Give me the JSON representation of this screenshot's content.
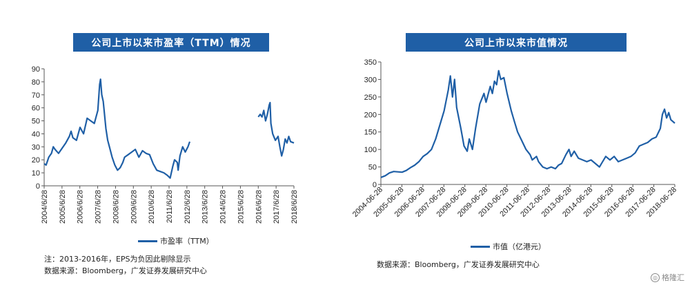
{
  "chart_data": [
    {
      "type": "line",
      "title": "公司上市以来市盈率（TTM）情况",
      "legend": "市盈率（TTM）",
      "ylim": [
        0,
        90
      ],
      "yticks": [
        0,
        10,
        20,
        30,
        40,
        50,
        60,
        70,
        80,
        90
      ],
      "xticks": [
        "2004/6/28",
        "2005/6/28",
        "2006/6/28",
        "2007/6/28",
        "2008/6/28",
        "2009/6/28",
        "2010/6/28",
        "2011/6/28",
        "2012/6/28",
        "2013/6/28",
        "2014/6/28",
        "2015/6/28",
        "2016/6/28",
        "2017/6/28",
        "2018/6/28"
      ],
      "xrange": [
        2004.49,
        2018.49
      ],
      "segments": [
        [
          [
            2004.49,
            17
          ],
          [
            2004.6,
            16
          ],
          [
            2004.75,
            22
          ],
          [
            2004.9,
            25
          ],
          [
            2005.0,
            30
          ],
          [
            2005.1,
            28
          ],
          [
            2005.3,
            25
          ],
          [
            2005.5,
            29
          ],
          [
            2005.7,
            33
          ],
          [
            2005.9,
            38
          ],
          [
            2006.0,
            42
          ],
          [
            2006.1,
            37
          ],
          [
            2006.3,
            35
          ],
          [
            2006.5,
            45
          ],
          [
            2006.7,
            40
          ],
          [
            2006.9,
            52
          ],
          [
            2007.1,
            50
          ],
          [
            2007.3,
            48
          ],
          [
            2007.5,
            58
          ],
          [
            2007.6,
            78
          ],
          [
            2007.65,
            82
          ],
          [
            2007.72,
            70
          ],
          [
            2007.8,
            65
          ],
          [
            2007.85,
            58
          ],
          [
            2007.95,
            44
          ],
          [
            2008.05,
            35
          ],
          [
            2008.15,
            30
          ],
          [
            2008.3,
            22
          ],
          [
            2008.45,
            16
          ],
          [
            2008.6,
            12
          ],
          [
            2008.75,
            14
          ],
          [
            2008.9,
            18
          ],
          [
            2009.0,
            22
          ],
          [
            2009.2,
            24
          ],
          [
            2009.4,
            26
          ],
          [
            2009.6,
            28
          ],
          [
            2009.8,
            22
          ],
          [
            2010.0,
            27
          ],
          [
            2010.2,
            25
          ],
          [
            2010.4,
            24
          ],
          [
            2010.6,
            17
          ],
          [
            2010.8,
            12
          ],
          [
            2011.0,
            11
          ],
          [
            2011.2,
            10
          ],
          [
            2011.4,
            8
          ],
          [
            2011.55,
            6
          ],
          [
            2011.7,
            15
          ],
          [
            2011.8,
            20
          ],
          [
            2011.95,
            18
          ],
          [
            2012.0,
            12
          ],
          [
            2012.1,
            23
          ],
          [
            2012.25,
            30
          ],
          [
            2012.4,
            26
          ],
          [
            2012.55,
            30
          ],
          [
            2012.65,
            34
          ]
        ],
        [
          [
            2016.49,
            53
          ],
          [
            2016.6,
            55
          ],
          [
            2016.7,
            53
          ],
          [
            2016.8,
            58
          ],
          [
            2016.9,
            50
          ],
          [
            2017.0,
            55
          ],
          [
            2017.1,
            62
          ],
          [
            2017.15,
            64
          ],
          [
            2017.2,
            48
          ],
          [
            2017.3,
            40
          ],
          [
            2017.45,
            35
          ],
          [
            2017.6,
            38
          ],
          [
            2017.7,
            30
          ],
          [
            2017.8,
            23
          ],
          [
            2017.9,
            28
          ],
          [
            2018.0,
            36
          ],
          [
            2018.1,
            33
          ],
          [
            2018.2,
            38
          ],
          [
            2018.3,
            34
          ],
          [
            2018.49,
            33
          ]
        ]
      ],
      "note1": "注：2013-2016年，EPS为负因此剔除显示",
      "note2": "数据来源：Bloomberg，广发证券发展研究中心"
    },
    {
      "type": "line",
      "title": "公司上市以来市值情况",
      "legend": "市值（亿港元）",
      "ylim": [
        0,
        350
      ],
      "yticks": [
        0,
        50,
        100,
        150,
        200,
        250,
        300,
        350
      ],
      "xticks": [
        "2004-06-28",
        "2005-06-28",
        "2006-06-28",
        "2007-06-28",
        "2008-06-28",
        "2009-06-28",
        "2010-06-28",
        "2011-06-28",
        "2012-06-28",
        "2013-06-28",
        "2014-06-28",
        "2015-06-28",
        "2016-06-28",
        "2017-06-28",
        "2018-06-28"
      ],
      "xrange": [
        2004.49,
        2018.49
      ],
      "segments": [
        [
          [
            2004.49,
            20
          ],
          [
            2004.7,
            25
          ],
          [
            2004.9,
            33
          ],
          [
            2005.1,
            37
          ],
          [
            2005.3,
            36
          ],
          [
            2005.5,
            35
          ],
          [
            2005.7,
            40
          ],
          [
            2005.9,
            48
          ],
          [
            2006.1,
            55
          ],
          [
            2006.3,
            65
          ],
          [
            2006.5,
            80
          ],
          [
            2006.7,
            88
          ],
          [
            2006.9,
            100
          ],
          [
            2007.1,
            130
          ],
          [
            2007.3,
            170
          ],
          [
            2007.5,
            210
          ],
          [
            2007.7,
            270
          ],
          [
            2007.8,
            310
          ],
          [
            2007.9,
            250
          ],
          [
            2008.0,
            300
          ],
          [
            2008.1,
            220
          ],
          [
            2008.3,
            160
          ],
          [
            2008.45,
            110
          ],
          [
            2008.6,
            95
          ],
          [
            2008.7,
            130
          ],
          [
            2008.85,
            100
          ],
          [
            2009.0,
            160
          ],
          [
            2009.2,
            230
          ],
          [
            2009.4,
            260
          ],
          [
            2009.5,
            235
          ],
          [
            2009.7,
            280
          ],
          [
            2009.8,
            260
          ],
          [
            2009.9,
            295
          ],
          [
            2010.0,
            285
          ],
          [
            2010.1,
            325
          ],
          [
            2010.2,
            300
          ],
          [
            2010.35,
            305
          ],
          [
            2010.5,
            260
          ],
          [
            2010.7,
            210
          ],
          [
            2010.85,
            180
          ],
          [
            2011.0,
            150
          ],
          [
            2011.2,
            125
          ],
          [
            2011.4,
            100
          ],
          [
            2011.6,
            85
          ],
          [
            2011.7,
            70
          ],
          [
            2011.9,
            80
          ],
          [
            2012.0,
            65
          ],
          [
            2012.2,
            50
          ],
          [
            2012.4,
            45
          ],
          [
            2012.6,
            50
          ],
          [
            2012.8,
            45
          ],
          [
            2012.95,
            55
          ],
          [
            2013.1,
            60
          ],
          [
            2013.3,
            85
          ],
          [
            2013.45,
            100
          ],
          [
            2013.55,
            80
          ],
          [
            2013.7,
            95
          ],
          [
            2013.9,
            75
          ],
          [
            2014.1,
            70
          ],
          [
            2014.3,
            65
          ],
          [
            2014.5,
            70
          ],
          [
            2014.7,
            60
          ],
          [
            2014.9,
            50
          ],
          [
            2015.0,
            60
          ],
          [
            2015.2,
            80
          ],
          [
            2015.4,
            70
          ],
          [
            2015.6,
            80
          ],
          [
            2015.8,
            65
          ],
          [
            2016.0,
            70
          ],
          [
            2016.2,
            75
          ],
          [
            2016.4,
            80
          ],
          [
            2016.6,
            90
          ],
          [
            2016.8,
            110
          ],
          [
            2017.0,
            115
          ],
          [
            2017.2,
            120
          ],
          [
            2017.4,
            130
          ],
          [
            2017.6,
            135
          ],
          [
            2017.8,
            160
          ],
          [
            2017.9,
            200
          ],
          [
            2018.0,
            215
          ],
          [
            2018.1,
            190
          ],
          [
            2018.2,
            205
          ],
          [
            2018.3,
            185
          ],
          [
            2018.49,
            175
          ]
        ]
      ],
      "note2": "数据来源：Bloomberg，广发证券发展研究中心"
    }
  ],
  "watermark": "格隆汇"
}
